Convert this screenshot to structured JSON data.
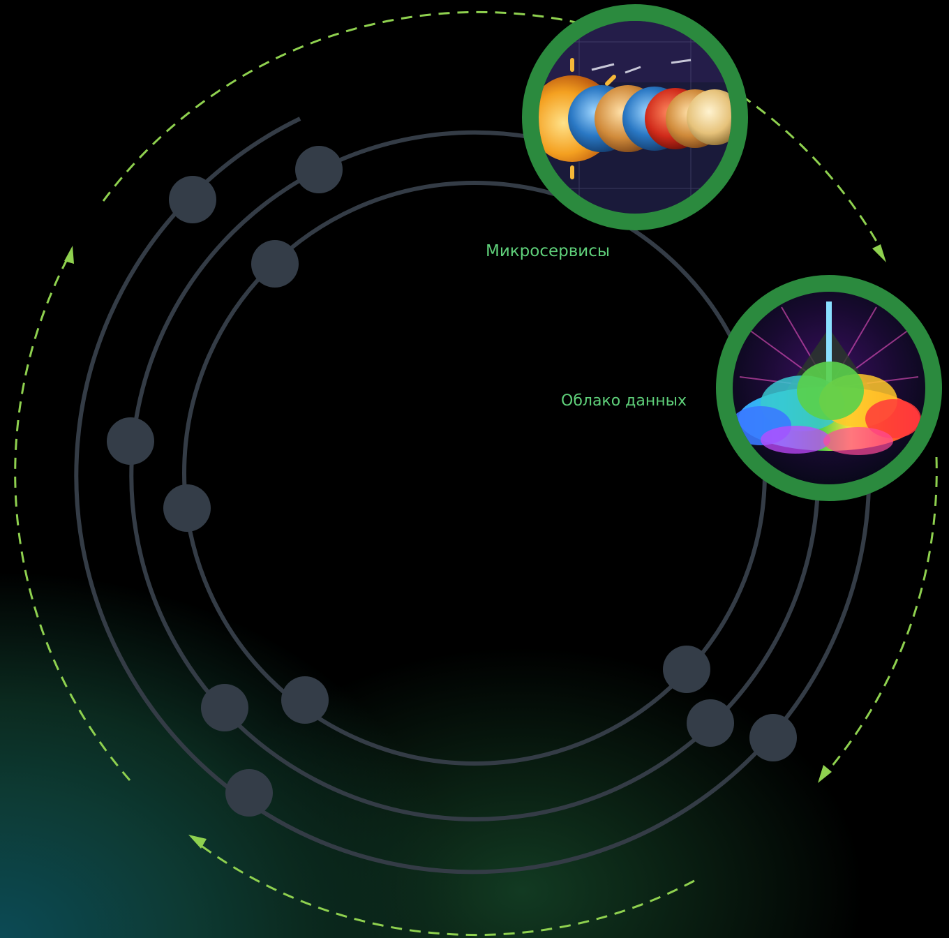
{
  "labels": {
    "microservices": "Микросервисы",
    "data_cloud": "Облако данных"
  },
  "colors": {
    "ring": "#343c46",
    "node": "#343d48",
    "flow_arrow": "#8fd14f",
    "badge_border": "#2b8a3e",
    "label_text": "#5fd07a"
  },
  "icons": {
    "microservices_badge": "planets-solar-system-icon",
    "data_cloud_badge": "rainbow-data-cloud-icon"
  }
}
